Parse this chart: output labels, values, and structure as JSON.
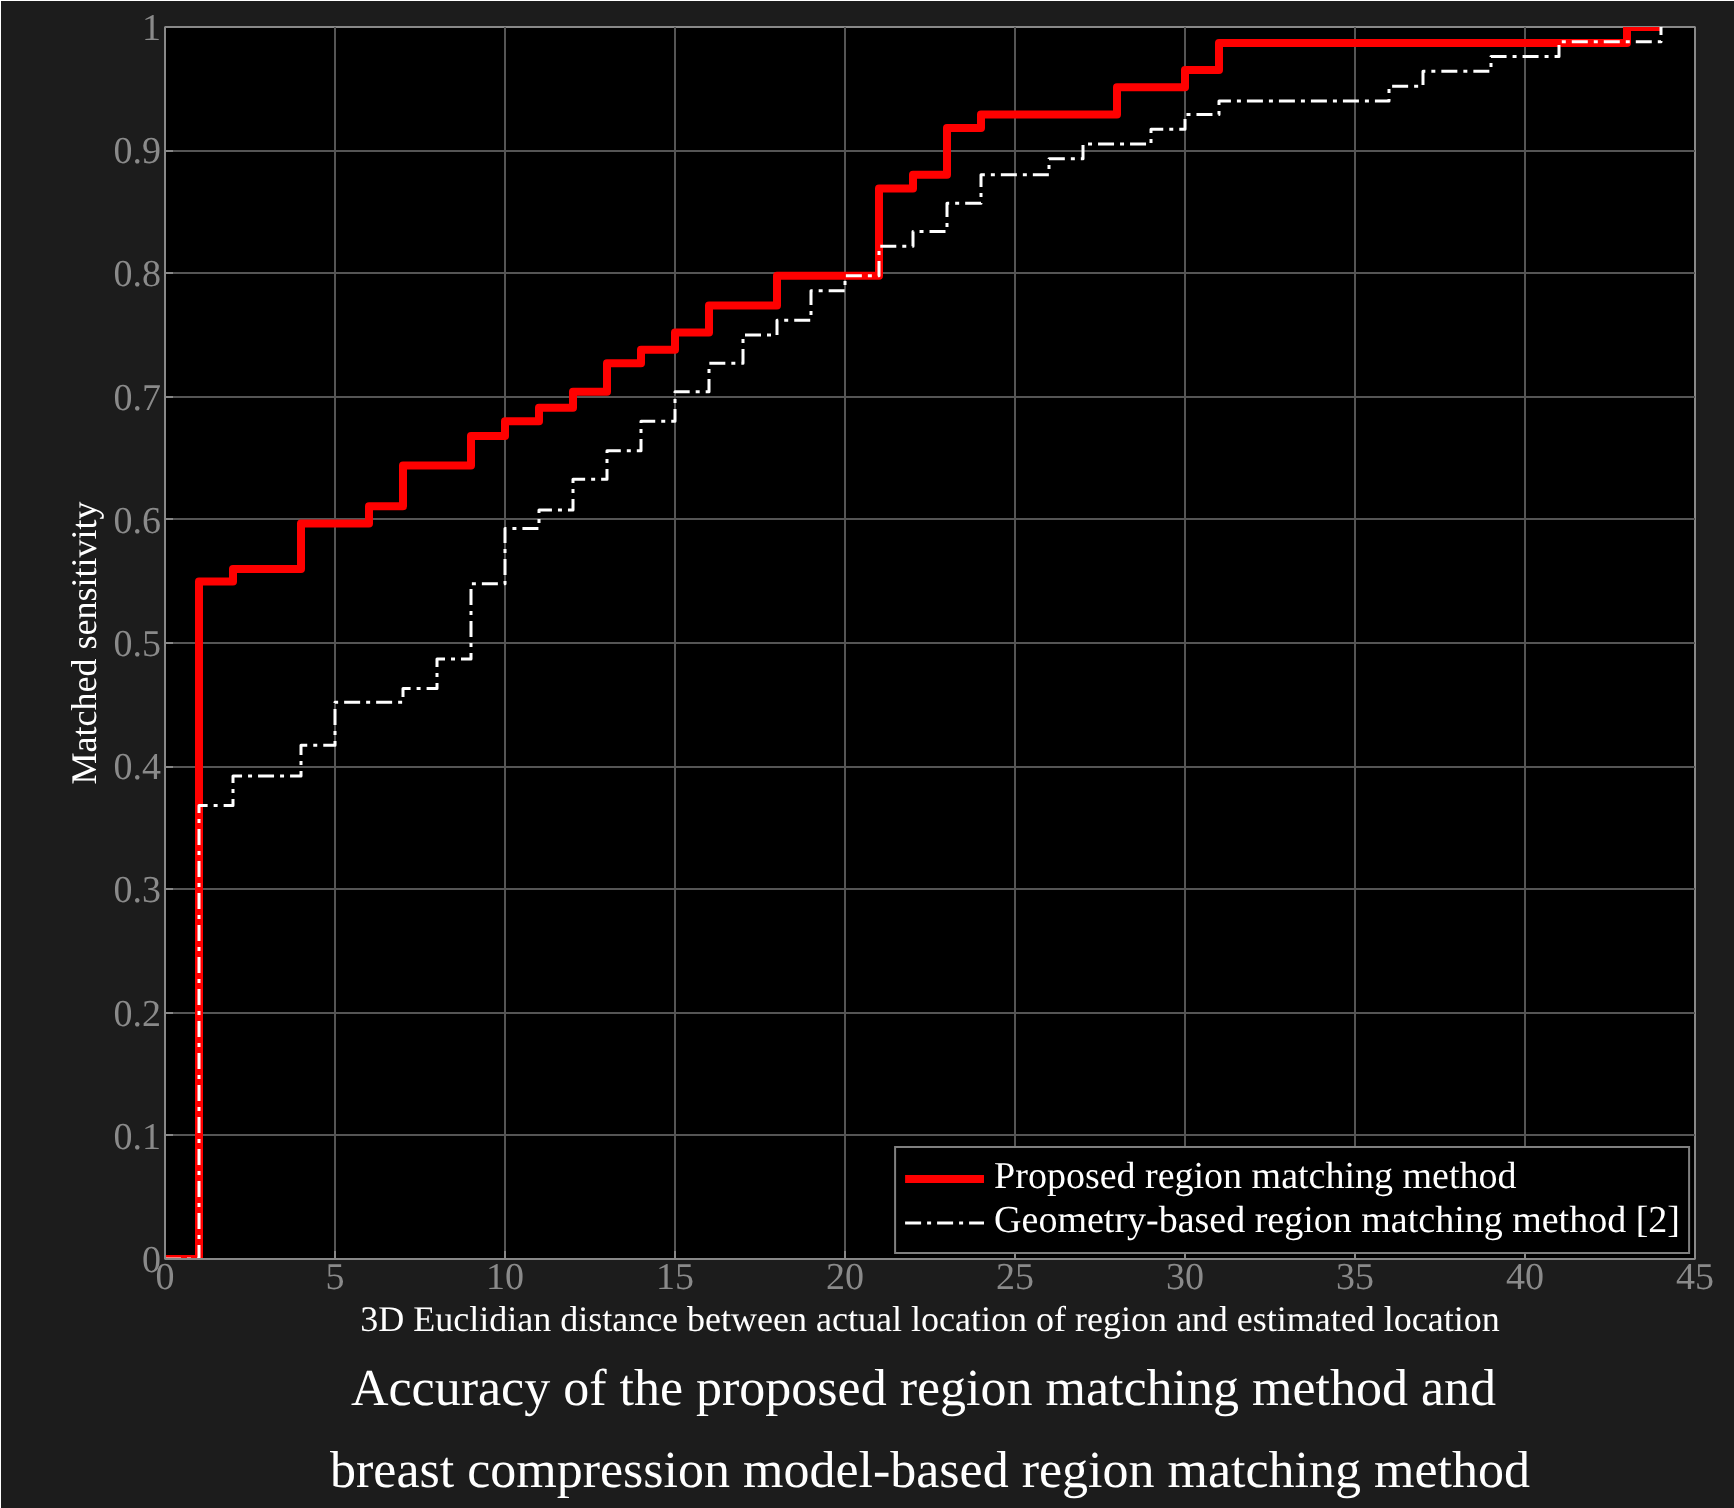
{
  "chart_data": {
    "type": "step",
    "xlabel": "3D Euclidian distance between actual location of region and estimated location",
    "ylabel": "Matched sensitivity",
    "annotations": [
      "Accuracy of  the proposed region matching method and",
      "breast compression model-based region matching method"
    ],
    "xlim": [
      0,
      45
    ],
    "xticks": [
      0,
      5,
      10,
      15,
      20,
      25,
      30,
      35,
      40,
      45
    ],
    "ylim": [
      0,
      1
    ],
    "yticks": [
      0,
      0.1,
      0.2,
      0.3,
      0.4,
      0.5,
      0.6,
      0.7,
      0.8,
      0.9,
      1
    ],
    "grid": true,
    "legend": "bottom right",
    "series": [
      {
        "name": "Proposed region matching method",
        "color": "#ff0000",
        "line_style": "solid",
        "x": [
          0,
          1,
          2,
          4,
          6,
          7,
          9,
          10,
          11,
          12,
          13,
          14,
          15,
          16,
          18,
          21,
          22,
          23,
          24,
          28,
          30,
          31,
          43,
          44
        ],
        "values": [
          0,
          0.55,
          0.56,
          0.597,
          0.611,
          0.644,
          0.668,
          0.68,
          0.691,
          0.704,
          0.727,
          0.738,
          0.752,
          0.774,
          0.798,
          0.869,
          0.88,
          0.918,
          0.929,
          0.951,
          0.965,
          0.987,
          1,
          1
        ]
      },
      {
        "name": "Geometry-based region matching method [2]",
        "color": "#ffffff",
        "line_style": "dashdot",
        "x": [
          0,
          1,
          2,
          4,
          5,
          7,
          8,
          9,
          10,
          11,
          12,
          13,
          14,
          15,
          16,
          17,
          18,
          19,
          20,
          21,
          22,
          23,
          24,
          26,
          27,
          29,
          30,
          31,
          36,
          37,
          39,
          41,
          44
        ],
        "values": [
          0,
          0.368,
          0.392,
          0.417,
          0.452,
          0.463,
          0.487,
          0.548,
          0.593,
          0.608,
          0.633,
          0.656,
          0.68,
          0.704,
          0.727,
          0.75,
          0.762,
          0.786,
          0.798,
          0.822,
          0.834,
          0.857,
          0.88,
          0.893,
          0.905,
          0.917,
          0.929,
          0.94,
          0.952,
          0.964,
          0.976,
          0.988,
          1
        ]
      }
    ]
  }
}
